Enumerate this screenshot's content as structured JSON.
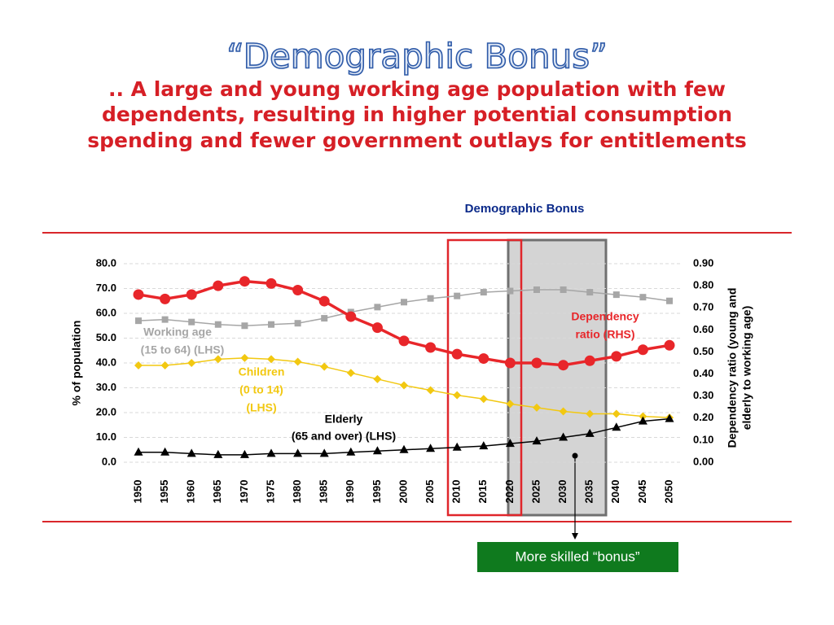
{
  "slide": {
    "title": "“Demographic Bonus”",
    "subtitle": [
      ".. A large and young working age population with few",
      "dependents, resulting in higher potential consumption",
      "spending and fewer government outlays for entitlements"
    ],
    "callout": "More skilled “bonus”"
  },
  "chart_data": {
    "type": "line",
    "categories": [
      "1950",
      "1955",
      "1960",
      "1965",
      "1970",
      "1975",
      "1980",
      "1985",
      "1990",
      "1995",
      "2000",
      "2005",
      "2010",
      "2015",
      "2020",
      "2025",
      "2030",
      "2035",
      "2040",
      "2045",
      "2050"
    ],
    "ylabel": "% of population",
    "y2label": [
      "Dependency ratio (young and",
      "elderly to working age)"
    ],
    "ylim": [
      0,
      80
    ],
    "yticks": [
      {
        "value": 0,
        "label": "0.0"
      },
      {
        "value": 10,
        "label": "10.0"
      },
      {
        "value": 20,
        "label": "20.0"
      },
      {
        "value": 30,
        "label": "30.0"
      },
      {
        "value": 40,
        "label": "40.0"
      },
      {
        "value": 50,
        "label": "50.0"
      },
      {
        "value": 60,
        "label": "60.0"
      },
      {
        "value": 70,
        "label": "70.0"
      },
      {
        "value": 80,
        "label": "80.0"
      }
    ],
    "y2lim": [
      0,
      0.9
    ],
    "y2ticks": [
      {
        "value": 0,
        "label": "0.00"
      },
      {
        "value": 0.1,
        "label": "0.10"
      },
      {
        "value": 0.2,
        "label": "0.20"
      },
      {
        "value": 0.3,
        "label": "0.30"
      },
      {
        "value": 0.4,
        "label": "0.40"
      },
      {
        "value": 0.5,
        "label": "0.50"
      },
      {
        "value": 0.6,
        "label": "0.60"
      },
      {
        "value": 0.7,
        "label": "0.70"
      },
      {
        "value": 0.8,
        "label": "0.80"
      },
      {
        "value": 0.9,
        "label": "0.90"
      }
    ],
    "grid": true,
    "series": [
      {
        "name": "Working age (15 to 64) (LHS)",
        "color": "#a6a6a6",
        "marker": "square",
        "values": [
          57,
          57.5,
          56.5,
          55.5,
          55,
          55.5,
          56,
          58,
          60.5,
          62.5,
          64.5,
          66,
          67,
          68.5,
          69,
          69.5,
          69.5,
          68.5,
          67.5,
          66.5,
          65
        ]
      },
      {
        "name": "Children (0 to 14) (LHS)",
        "color": "#f2c811",
        "marker": "diamond",
        "values": [
          39,
          39,
          40,
          41.5,
          42,
          41.5,
          40.5,
          38.5,
          36,
          33.5,
          31,
          29,
          27,
          25.5,
          23.5,
          22,
          20.5,
          19.5,
          19.5,
          18.5,
          18
        ]
      },
      {
        "name": "Elderly (65 and over) (LHS)",
        "color": "#000000",
        "marker": "triangle",
        "values": [
          4,
          4,
          3.5,
          3,
          3,
          3.5,
          3.5,
          3.5,
          4,
          4.5,
          5,
          5.5,
          6,
          6.5,
          7.5,
          8.5,
          10,
          11.5,
          14,
          16.5,
          17.5
        ]
      },
      {
        "name": "Dependency ratio (RHS)",
        "color": "#e8262a",
        "marker": "circle",
        "axis": "y2",
        "values": [
          0.76,
          0.74,
          0.76,
          0.8,
          0.82,
          0.81,
          0.78,
          0.73,
          0.66,
          0.61,
          0.55,
          0.52,
          0.49,
          0.47,
          0.45,
          0.45,
          0.44,
          0.46,
          0.48,
          0.51,
          0.53
        ]
      }
    ],
    "annotations": [
      "Working age",
      "(15 to 64) (LHS)",
      "Children",
      "(0 to 14)",
      "(LHS)",
      "Elderly",
      "(65 and over) (LHS)",
      "Dependency",
      "ratio (RHS)",
      "Demographic Bonus"
    ]
  }
}
